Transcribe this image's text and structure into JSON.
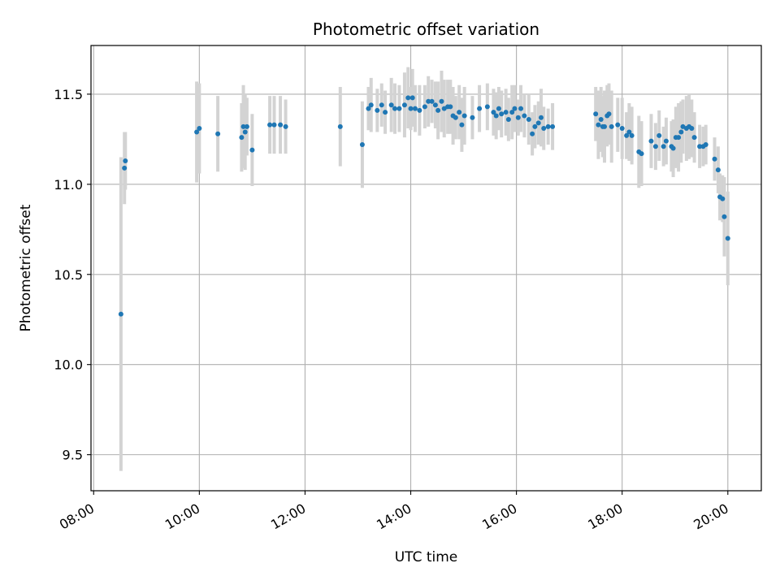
{
  "chart_data": {
    "type": "scatter",
    "title": "Photometric offset variation",
    "xlabel": "UTC time",
    "ylabel": "Photometric offset",
    "x_ticks": [
      "08:00",
      "10:00",
      "12:00",
      "14:00",
      "16:00",
      "18:00",
      "20:00"
    ],
    "y_ticks": [
      "9.5",
      "10.0",
      "10.5",
      "11.0",
      "11.5"
    ],
    "y_tick_values": [
      9.5,
      10.0,
      10.5,
      11.0,
      11.5
    ],
    "xlim": [
      "07:57",
      "20:38"
    ],
    "ylim": [
      9.3,
      11.77
    ],
    "grid": true,
    "colors": {
      "points": "#1f77b4",
      "errorbars": "#d3d3d3",
      "grid": "#b0b0b0"
    },
    "series": [
      {
        "values": [
          [
            "08:31",
            10.28,
            0.87
          ],
          [
            "08:35",
            11.09,
            0.2
          ],
          [
            "08:36",
            11.13,
            0.16
          ],
          [
            "09:57",
            11.29,
            0.28
          ],
          [
            "10:00",
            11.31,
            0.25
          ],
          [
            "10:21",
            11.28,
            0.21
          ],
          [
            "10:48",
            11.26,
            0.19
          ],
          [
            "10:50",
            11.32,
            0.23
          ],
          [
            "10:52",
            11.29,
            0.21
          ],
          [
            "10:54",
            11.32,
            0.16
          ],
          [
            "11:00",
            11.19,
            0.2
          ],
          [
            "11:20",
            11.33,
            0.16
          ],
          [
            "11:25",
            11.33,
            0.16
          ],
          [
            "11:32",
            11.33,
            0.16
          ],
          [
            "11:38",
            11.32,
            0.15
          ],
          [
            "12:40",
            11.32,
            0.22
          ],
          [
            "13:05",
            11.22,
            0.24
          ],
          [
            "13:12",
            11.42,
            0.12
          ],
          [
            "13:15",
            11.44,
            0.15
          ],
          [
            "13:22",
            11.41,
            0.12
          ],
          [
            "13:27",
            11.44,
            0.12
          ],
          [
            "13:31",
            11.4,
            0.12
          ],
          [
            "13:38",
            11.44,
            0.15
          ],
          [
            "13:42",
            11.42,
            0.14
          ],
          [
            "13:47",
            11.42,
            0.13
          ],
          [
            "13:53",
            11.44,
            0.18
          ],
          [
            "13:57",
            11.48,
            0.17
          ],
          [
            "14:00",
            11.42,
            0.12
          ],
          [
            "14:02",
            11.48,
            0.16
          ],
          [
            "14:05",
            11.42,
            0.13
          ],
          [
            "14:10",
            11.41,
            0.14
          ],
          [
            "14:16",
            11.43,
            0.12
          ],
          [
            "14:20",
            11.46,
            0.14
          ],
          [
            "14:24",
            11.46,
            0.12
          ],
          [
            "14:28",
            11.44,
            0.13
          ],
          [
            "14:31",
            11.41,
            0.16
          ],
          [
            "14:35",
            11.46,
            0.17
          ],
          [
            "14:38",
            11.42,
            0.16
          ],
          [
            "14:42",
            11.43,
            0.15
          ],
          [
            "14:45",
            11.43,
            0.15
          ],
          [
            "14:48",
            11.38,
            0.16
          ],
          [
            "14:51",
            11.37,
            0.12
          ],
          [
            "14:55",
            11.4,
            0.15
          ],
          [
            "14:58",
            11.33,
            0.15
          ],
          [
            "15:01",
            11.38,
            0.16
          ],
          [
            "15:10",
            11.37,
            0.12
          ],
          [
            "15:18",
            11.42,
            0.13
          ],
          [
            "15:27",
            11.43,
            0.13
          ],
          [
            "15:34",
            11.4,
            0.13
          ],
          [
            "15:37",
            11.38,
            0.13
          ],
          [
            "15:40",
            11.42,
            0.12
          ],
          [
            "15:43",
            11.39,
            0.13
          ],
          [
            "15:48",
            11.4,
            0.13
          ],
          [
            "15:51",
            11.36,
            0.12
          ],
          [
            "15:55",
            11.4,
            0.15
          ],
          [
            "15:58",
            11.42,
            0.13
          ],
          [
            "16:02",
            11.37,
            0.1
          ],
          [
            "16:05",
            11.42,
            0.13
          ],
          [
            "16:09",
            11.38,
            0.12
          ],
          [
            "16:14",
            11.36,
            0.14
          ],
          [
            "16:18",
            11.28,
            0.12
          ],
          [
            "16:21",
            11.32,
            0.12
          ],
          [
            "16:25",
            11.34,
            0.12
          ],
          [
            "16:28",
            11.37,
            0.16
          ],
          [
            "16:31",
            11.31,
            0.12
          ],
          [
            "16:36",
            11.32,
            0.1
          ],
          [
            "16:41",
            11.32,
            0.13
          ],
          [
            "17:30",
            11.39,
            0.15
          ],
          [
            "17:33",
            11.33,
            0.19
          ],
          [
            "17:36",
            11.36,
            0.18
          ],
          [
            "17:38",
            11.32,
            0.17
          ],
          [
            "17:40",
            11.32,
            0.2
          ],
          [
            "17:43",
            11.38,
            0.17
          ],
          [
            "17:45",
            11.39,
            0.17
          ],
          [
            "17:48",
            11.32,
            0.2
          ],
          [
            "17:55",
            11.33,
            0.15
          ],
          [
            "18:00",
            11.31,
            0.17
          ],
          [
            "18:05",
            11.27,
            0.13
          ],
          [
            "18:08",
            11.29,
            0.16
          ],
          [
            "18:11",
            11.27,
            0.16
          ],
          [
            "18:19",
            11.18,
            0.2
          ],
          [
            "18:22",
            11.17,
            0.18
          ],
          [
            "18:33",
            11.24,
            0.15
          ],
          [
            "18:38",
            11.21,
            0.13
          ],
          [
            "18:42",
            11.27,
            0.14
          ],
          [
            "18:47",
            11.21,
            0.11
          ],
          [
            "18:50",
            11.24,
            0.13
          ],
          [
            "18:56",
            11.21,
            0.14
          ],
          [
            "18:58",
            11.2,
            0.16
          ],
          [
            "19:01",
            11.26,
            0.17
          ],
          [
            "19:04",
            11.26,
            0.19
          ],
          [
            "19:07",
            11.29,
            0.17
          ],
          [
            "19:09",
            11.32,
            0.15
          ],
          [
            "19:13",
            11.31,
            0.18
          ],
          [
            "19:16",
            11.32,
            0.18
          ],
          [
            "19:19",
            11.31,
            0.16
          ],
          [
            "19:22",
            11.26,
            0.14
          ],
          [
            "19:28",
            11.21,
            0.12
          ],
          [
            "19:32",
            11.21,
            0.11
          ],
          [
            "19:35",
            11.22,
            0.11
          ],
          [
            "19:45",
            11.14,
            0.12
          ],
          [
            "19:49",
            11.08,
            0.13
          ],
          [
            "19:51",
            10.93,
            0.13
          ],
          [
            "19:54",
            10.92,
            0.13
          ],
          [
            "19:56",
            10.82,
            0.22
          ],
          [
            "20:00",
            10.7,
            0.26
          ]
        ]
      }
    ]
  }
}
